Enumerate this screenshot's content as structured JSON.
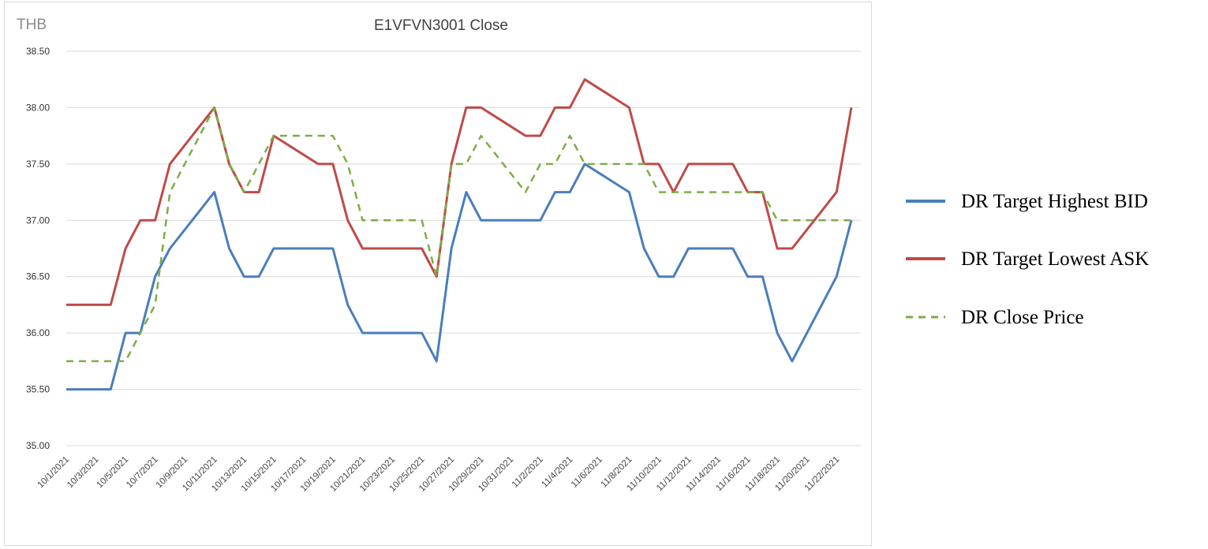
{
  "chart_data": {
    "type": "line",
    "title": "E1VFVN3001 Close",
    "ylabel": "THB",
    "xlabel": "",
    "ylim": [
      35.0,
      38.5
    ],
    "y_ticks": [
      "35.00",
      "35.50",
      "36.00",
      "36.50",
      "37.00",
      "37.50",
      "38.00",
      "38.50"
    ],
    "x": [
      "10/1/2021",
      "10/4/2021",
      "10/5/2021",
      "10/6/2021",
      "10/7/2021",
      "10/8/2021",
      "10/11/2021",
      "10/12/2021",
      "10/13/2021",
      "10/14/2021",
      "10/15/2021",
      "10/18/2021",
      "10/19/2021",
      "10/20/2021",
      "10/21/2021",
      "10/25/2021",
      "10/26/2021",
      "10/27/2021",
      "10/28/2021",
      "10/29/2021",
      "11/1/2021",
      "11/2/2021",
      "11/3/2021",
      "11/4/2021",
      "11/5/2021",
      "11/8/2021",
      "11/9/2021",
      "11/10/2021",
      "11/11/2021",
      "11/12/2021",
      "11/15/2021",
      "11/16/2021",
      "11/17/2021",
      "11/18/2021",
      "11/19/2021",
      "11/22/2021",
      "11/23/2021"
    ],
    "x_tick_labels": [
      "10/1/2021",
      "10/3/2021",
      "10/5/2021",
      "10/7/2021",
      "10/9/2021",
      "10/11/2021",
      "10/13/2021",
      "10/15/2021",
      "10/17/2021",
      "10/19/2021",
      "10/21/2021",
      "10/23/2021",
      "10/25/2021",
      "10/27/2021",
      "10/29/2021",
      "10/31/2021",
      "11/2/2021",
      "11/4/2021",
      "11/6/2021",
      "11/8/2021",
      "11/10/2021",
      "11/12/2021",
      "11/14/2021",
      "11/16/2021",
      "11/18/2021",
      "11/20/2021",
      "11/22/2021"
    ],
    "series": [
      {
        "name": "DR Target Highest BID",
        "color": "#4a7ebb",
        "style": "solid",
        "values": [
          35.5,
          35.5,
          36.0,
          36.0,
          36.5,
          36.75,
          37.25,
          36.75,
          36.5,
          36.5,
          36.75,
          36.75,
          36.75,
          36.25,
          36.0,
          36.0,
          35.75,
          36.75,
          37.25,
          37.0,
          37.0,
          37.0,
          37.25,
          37.25,
          37.5,
          37.25,
          36.75,
          36.5,
          36.5,
          36.75,
          36.75,
          36.5,
          36.5,
          36.0,
          35.75,
          36.5,
          37.0
        ]
      },
      {
        "name": "DR Target Lowest ASK",
        "color": "#be4b48",
        "style": "solid",
        "values": [
          36.25,
          36.25,
          36.75,
          37.0,
          37.0,
          37.5,
          38.0,
          37.5,
          37.25,
          37.25,
          37.75,
          37.5,
          37.5,
          37.0,
          36.75,
          36.75,
          36.5,
          37.5,
          38.0,
          38.0,
          37.75,
          37.75,
          38.0,
          38.0,
          38.25,
          38.0,
          37.5,
          37.5,
          37.25,
          37.5,
          37.5,
          37.25,
          37.25,
          36.75,
          36.75,
          37.25,
          38.0
        ]
      },
      {
        "name": "DR Close Price",
        "color": "#7cad45",
        "style": "dashed",
        "values": [
          35.75,
          35.75,
          35.75,
          36.0,
          36.25,
          37.25,
          38.0,
          37.5,
          37.25,
          37.5,
          37.75,
          37.75,
          37.75,
          37.5,
          37.0,
          37.0,
          36.5,
          37.5,
          37.5,
          37.75,
          37.25,
          37.5,
          37.5,
          37.75,
          37.5,
          37.5,
          37.5,
          37.25,
          37.25,
          37.25,
          37.25,
          37.25,
          37.25,
          37.0,
          37.0,
          37.0,
          37.0
        ]
      }
    ],
    "grid": true,
    "legend_position": "right"
  }
}
